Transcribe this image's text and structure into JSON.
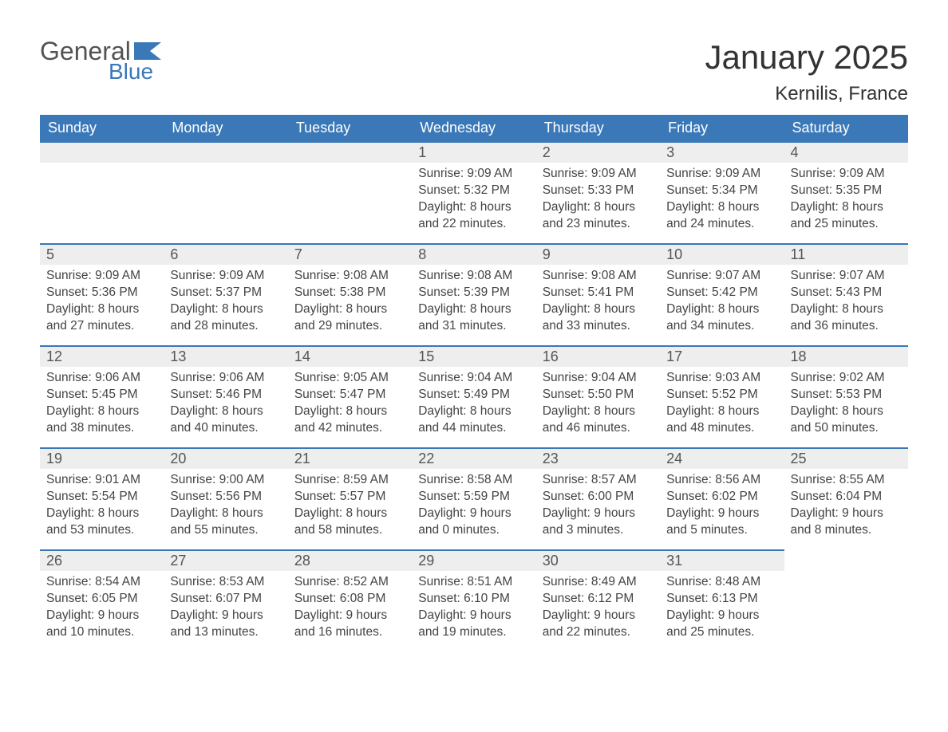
{
  "logo": {
    "text1": "General",
    "text2": "Blue",
    "flag_color": "#3a78b8",
    "text1_color": "#535353"
  },
  "title": "January 2025",
  "location": "Kernilis, France",
  "colors": {
    "header_bg": "#3a78b8",
    "header_text": "#ffffff",
    "daynum_bg": "#eeeeee",
    "daynum_border": "#3a78b8",
    "body_text": "#444444",
    "page_bg": "#ffffff"
  },
  "columns": [
    "Sunday",
    "Monday",
    "Tuesday",
    "Wednesday",
    "Thursday",
    "Friday",
    "Saturday"
  ],
  "weeks": [
    [
      null,
      null,
      null,
      {
        "n": "1",
        "sunrise": "9:09 AM",
        "sunset": "5:32 PM",
        "dl": "8 hours and 22 minutes."
      },
      {
        "n": "2",
        "sunrise": "9:09 AM",
        "sunset": "5:33 PM",
        "dl": "8 hours and 23 minutes."
      },
      {
        "n": "3",
        "sunrise": "9:09 AM",
        "sunset": "5:34 PM",
        "dl": "8 hours and 24 minutes."
      },
      {
        "n": "4",
        "sunrise": "9:09 AM",
        "sunset": "5:35 PM",
        "dl": "8 hours and 25 minutes."
      }
    ],
    [
      {
        "n": "5",
        "sunrise": "9:09 AM",
        "sunset": "5:36 PM",
        "dl": "8 hours and 27 minutes."
      },
      {
        "n": "6",
        "sunrise": "9:09 AM",
        "sunset": "5:37 PM",
        "dl": "8 hours and 28 minutes."
      },
      {
        "n": "7",
        "sunrise": "9:08 AM",
        "sunset": "5:38 PM",
        "dl": "8 hours and 29 minutes."
      },
      {
        "n": "8",
        "sunrise": "9:08 AM",
        "sunset": "5:39 PM",
        "dl": "8 hours and 31 minutes."
      },
      {
        "n": "9",
        "sunrise": "9:08 AM",
        "sunset": "5:41 PM",
        "dl": "8 hours and 33 minutes."
      },
      {
        "n": "10",
        "sunrise": "9:07 AM",
        "sunset": "5:42 PM",
        "dl": "8 hours and 34 minutes."
      },
      {
        "n": "11",
        "sunrise": "9:07 AM",
        "sunset": "5:43 PM",
        "dl": "8 hours and 36 minutes."
      }
    ],
    [
      {
        "n": "12",
        "sunrise": "9:06 AM",
        "sunset": "5:45 PM",
        "dl": "8 hours and 38 minutes."
      },
      {
        "n": "13",
        "sunrise": "9:06 AM",
        "sunset": "5:46 PM",
        "dl": "8 hours and 40 minutes."
      },
      {
        "n": "14",
        "sunrise": "9:05 AM",
        "sunset": "5:47 PM",
        "dl": "8 hours and 42 minutes."
      },
      {
        "n": "15",
        "sunrise": "9:04 AM",
        "sunset": "5:49 PM",
        "dl": "8 hours and 44 minutes."
      },
      {
        "n": "16",
        "sunrise": "9:04 AM",
        "sunset": "5:50 PM",
        "dl": "8 hours and 46 minutes."
      },
      {
        "n": "17",
        "sunrise": "9:03 AM",
        "sunset": "5:52 PM",
        "dl": "8 hours and 48 minutes."
      },
      {
        "n": "18",
        "sunrise": "9:02 AM",
        "sunset": "5:53 PM",
        "dl": "8 hours and 50 minutes."
      }
    ],
    [
      {
        "n": "19",
        "sunrise": "9:01 AM",
        "sunset": "5:54 PM",
        "dl": "8 hours and 53 minutes."
      },
      {
        "n": "20",
        "sunrise": "9:00 AM",
        "sunset": "5:56 PM",
        "dl": "8 hours and 55 minutes."
      },
      {
        "n": "21",
        "sunrise": "8:59 AM",
        "sunset": "5:57 PM",
        "dl": "8 hours and 58 minutes."
      },
      {
        "n": "22",
        "sunrise": "8:58 AM",
        "sunset": "5:59 PM",
        "dl": "9 hours and 0 minutes."
      },
      {
        "n": "23",
        "sunrise": "8:57 AM",
        "sunset": "6:00 PM",
        "dl": "9 hours and 3 minutes."
      },
      {
        "n": "24",
        "sunrise": "8:56 AM",
        "sunset": "6:02 PM",
        "dl": "9 hours and 5 minutes."
      },
      {
        "n": "25",
        "sunrise": "8:55 AM",
        "sunset": "6:04 PM",
        "dl": "9 hours and 8 minutes."
      }
    ],
    [
      {
        "n": "26",
        "sunrise": "8:54 AM",
        "sunset": "6:05 PM",
        "dl": "9 hours and 10 minutes."
      },
      {
        "n": "27",
        "sunrise": "8:53 AM",
        "sunset": "6:07 PM",
        "dl": "9 hours and 13 minutes."
      },
      {
        "n": "28",
        "sunrise": "8:52 AM",
        "sunset": "6:08 PM",
        "dl": "9 hours and 16 minutes."
      },
      {
        "n": "29",
        "sunrise": "8:51 AM",
        "sunset": "6:10 PM",
        "dl": "9 hours and 19 minutes."
      },
      {
        "n": "30",
        "sunrise": "8:49 AM",
        "sunset": "6:12 PM",
        "dl": "9 hours and 22 minutes."
      },
      {
        "n": "31",
        "sunrise": "8:48 AM",
        "sunset": "6:13 PM",
        "dl": "9 hours and 25 minutes."
      },
      null
    ]
  ],
  "labels": {
    "sunrise": "Sunrise:",
    "sunset": "Sunset:",
    "daylight": "Daylight:"
  }
}
